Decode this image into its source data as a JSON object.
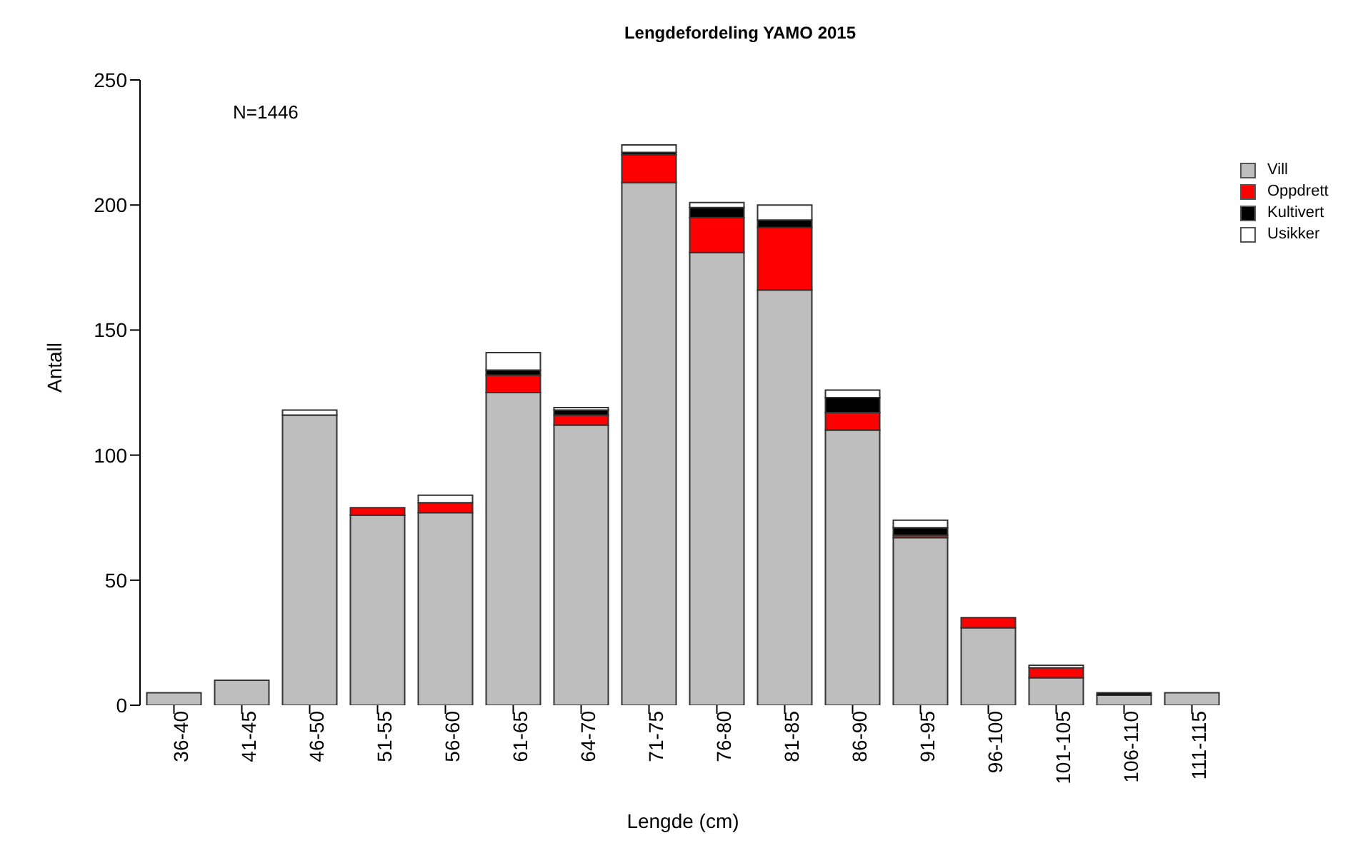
{
  "chart_data": {
    "type": "bar",
    "title": "Lengdefordeling YAMO 2015",
    "xlabel": "Lengde (cm)",
    "ylabel": "Antall",
    "annotations": [
      "N=1446"
    ],
    "categories": [
      "36-40",
      "41-45",
      "46-50",
      "51-55",
      "56-60",
      "61-65",
      "64-70",
      "71-75",
      "76-80",
      "81-85",
      "86-90",
      "91-95",
      "96-100",
      "101-105",
      "106-110",
      "111-115"
    ],
    "stacked": true,
    "ylim": [
      0,
      250
    ],
    "yticks": [
      0,
      50,
      100,
      150,
      200,
      250
    ],
    "grid": false,
    "legend": "top right",
    "series": [
      {
        "name": "Vill",
        "color": "#bebebe",
        "values": [
          5,
          10,
          116,
          76,
          77,
          125,
          112,
          209,
          181,
          166,
          110,
          67,
          31,
          11,
          4,
          5
        ]
      },
      {
        "name": "Oppdrett",
        "color": "#ff0000",
        "values": [
          0,
          0,
          0,
          3,
          4,
          7,
          4,
          11,
          14,
          25,
          7,
          1,
          4,
          4,
          0,
          0
        ]
      },
      {
        "name": "Kultivert",
        "color": "#000000",
        "values": [
          0,
          0,
          0,
          0,
          0,
          2,
          2,
          1,
          4,
          3,
          6,
          3,
          0,
          0,
          1,
          0
        ]
      },
      {
        "name": "Usikker",
        "color": "#ffffff",
        "values": [
          0,
          0,
          2,
          0,
          3,
          7,
          1,
          3,
          2,
          6,
          3,
          3,
          0,
          1,
          0,
          0
        ]
      }
    ]
  }
}
